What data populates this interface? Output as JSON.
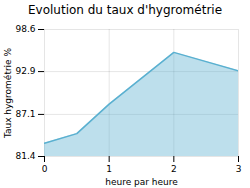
{
  "chart_data": {
    "type": "area",
    "title": "Evolution du taux d'hygrométrie",
    "xlabel": "heure par heure",
    "ylabel": "Taux hygrométrie %",
    "x": [
      0,
      0.5,
      1,
      2,
      3
    ],
    "values": [
      83.2,
      84.5,
      88.5,
      95.5,
      93.0
    ],
    "color": "#5ab0d0",
    "xlim": [
      0,
      3
    ],
    "ylim": [
      81.4,
      98.6
    ],
    "xticks": [
      0,
      1,
      2,
      3
    ],
    "yticks": [
      81.4,
      87.1,
      92.9,
      98.6
    ],
    "grid": true
  }
}
